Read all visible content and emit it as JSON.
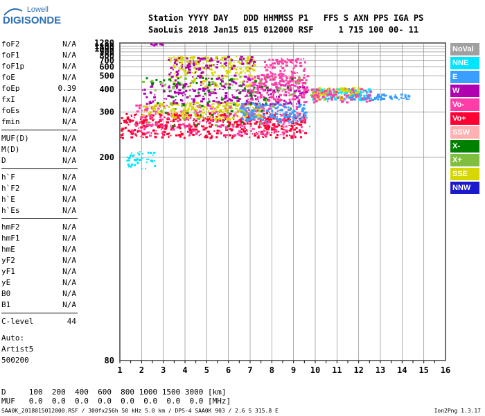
{
  "logo": {
    "line1": "Lowell",
    "line2": "DIGISONDE"
  },
  "header": {
    "line1": "Station YYYY DAY   DDD HHMMSS P1   FFS S AXN PPS IGA PS",
    "line2": "SaoLuis 2018 Jan15 015 012000 RSF     1 715 100 00- 11"
  },
  "params": {
    "group1": [
      {
        "name": "foF2",
        "value": "N/A"
      },
      {
        "name": "foF1",
        "value": "N/A"
      },
      {
        "name": "foF1p",
        "value": "N/A"
      },
      {
        "name": "foE",
        "value": "N/A"
      },
      {
        "name": "foEp",
        "value": "0.39"
      },
      {
        "name": "fxI",
        "value": "N/A"
      },
      {
        "name": "foEs",
        "value": "N/A"
      },
      {
        "name": "fmin",
        "value": "N/A"
      }
    ],
    "group2": [
      {
        "name": "MUF(D)",
        "value": "N/A"
      },
      {
        "name": "M(D)",
        "value": "N/A"
      },
      {
        "name": "D",
        "value": "N/A"
      }
    ],
    "group3": [
      {
        "name": "h`F",
        "value": "N/A"
      },
      {
        "name": "h`F2",
        "value": "N/A"
      },
      {
        "name": "h`E",
        "value": "N/A"
      },
      {
        "name": "h`Es",
        "value": "N/A"
      }
    ],
    "group4": [
      {
        "name": "hmF2",
        "value": "N/A"
      },
      {
        "name": "hmF1",
        "value": "N/A"
      },
      {
        "name": "hmE",
        "value": "N/A"
      },
      {
        "name": "yF2",
        "value": "N/A"
      },
      {
        "name": "yF1",
        "value": "N/A"
      },
      {
        "name": "yE",
        "value": "N/A"
      },
      {
        "name": "B0",
        "value": "N/A"
      },
      {
        "name": "B1",
        "value": "N/A"
      }
    ],
    "clevel": {
      "name": "C-level",
      "value": "44"
    }
  },
  "auto": [
    "Auto:",
    "Artist5",
    "500200"
  ],
  "legend": [
    {
      "label": "NoVal",
      "color": "#a0a0a0"
    },
    {
      "label": "NNE",
      "color": "#00e5ff"
    },
    {
      "label": "E",
      "color": "#3a9eff"
    },
    {
      "label": "W",
      "color": "#b000b0"
    },
    {
      "label": "Vo-",
      "color": "#ff3ca8"
    },
    {
      "label": "Vo+",
      "color": "#ff0033"
    },
    {
      "label": "SSW",
      "color": "#ffb0b0"
    },
    {
      "label": "X-",
      "color": "#008000"
    },
    {
      "label": "X+",
      "color": "#7fbf3f"
    },
    {
      "label": "SSE",
      "color": "#d6d600"
    },
    {
      "label": "NNW",
      "color": "#1a1acc"
    }
  ],
  "bottom": {
    "d_row": "D     100  200  400  600  800 1000 1500 3000 [km]",
    "muf_row": "MUF   0.0  0.0  0.0  0.0  0.0  0.0  0.0  0.0 [MHz]"
  },
  "footer": {
    "left": "SAA0K_2018015012000.RSF / 300fx256h 50 kHz 5.0 km / DPS-4 SAA0K 903 / 2.6 S 315.8 E",
    "right": "Ion2Png 1.3.17"
  },
  "chart_data": {
    "type": "scatter",
    "x": {
      "min": 1,
      "max": 16,
      "ticks": [
        1,
        2,
        3,
        4,
        5,
        6,
        7,
        8,
        9,
        10,
        11,
        12,
        13,
        14,
        15,
        16
      ]
    },
    "y": {
      "min": 80,
      "max": 1280,
      "scale": "reciprocal",
      "ticks": [
        80,
        200,
        300,
        400,
        500,
        600,
        700,
        800,
        900,
        1000,
        1100,
        1280
      ]
    },
    "grid": true,
    "clusters": [
      {
        "series": "Vo+",
        "x": [
          1.0,
          9.5
        ],
        "y": [
          235,
          300
        ],
        "count": 520
      },
      {
        "series": "Vo-",
        "x": [
          1.5,
          9.5
        ],
        "y": [
          240,
          330
        ],
        "count": 260
      },
      {
        "series": "SSE",
        "x": [
          2.0,
          7.5
        ],
        "y": [
          280,
          340
        ],
        "count": 200
      },
      {
        "series": "E",
        "x": [
          6.5,
          9.6
        ],
        "y": [
          270,
          340
        ],
        "count": 160
      },
      {
        "series": "W",
        "x": [
          2.0,
          9.6
        ],
        "y": [
          330,
          440
        ],
        "count": 230
      },
      {
        "series": "Vo-",
        "x": [
          6.8,
          9.6
        ],
        "y": [
          340,
          520
        ],
        "count": 180
      },
      {
        "series": "NNE",
        "x": [
          9.8,
          12.5
        ],
        "y": [
          350,
          410
        ],
        "count": 120
      },
      {
        "series": "SSE",
        "x": [
          9.8,
          12.0
        ],
        "y": [
          350,
          420
        ],
        "count": 90
      },
      {
        "series": "Vo-",
        "x": [
          9.8,
          12.5
        ],
        "y": [
          340,
          410
        ],
        "count": 90
      },
      {
        "series": "E",
        "x": [
          11.5,
          14.3
        ],
        "y": [
          350,
          380
        ],
        "count": 60
      },
      {
        "series": "SSE",
        "x": [
          3.2,
          7.2
        ],
        "y": [
          420,
          800
        ],
        "count": 220
      },
      {
        "series": "W",
        "x": [
          3.2,
          7.2
        ],
        "y": [
          420,
          800
        ],
        "count": 120
      },
      {
        "series": "Vo-",
        "x": [
          7.6,
          9.5
        ],
        "y": [
          420,
          760
        ],
        "count": 110
      },
      {
        "series": "NNE",
        "x": [
          1.2,
          2.6
        ],
        "y": [
          185,
          210
        ],
        "count": 40
      },
      {
        "series": "W",
        "x": [
          2.4,
          3.0
        ],
        "y": [
          1200,
          1280
        ],
        "count": 8
      },
      {
        "series": "X-",
        "x": [
          2.0,
          9.0
        ],
        "y": [
          260,
          500
        ],
        "count": 80
      },
      {
        "series": "X+",
        "x": [
          2.0,
          10.0
        ],
        "y": [
          260,
          500
        ],
        "count": 60
      }
    ]
  }
}
